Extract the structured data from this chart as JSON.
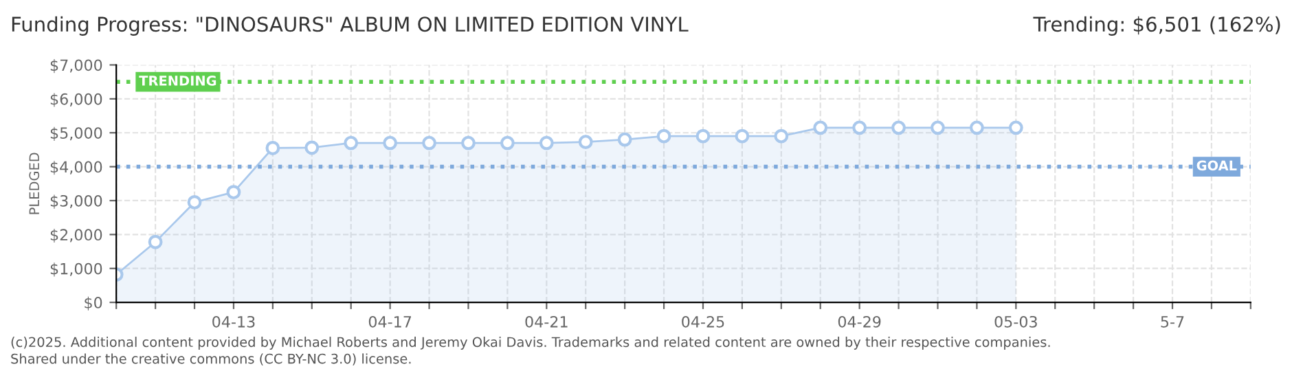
{
  "chart_data": {
    "type": "area",
    "title": "Funding Progress: \"DINOSAURS\" ALBUM ON LIMITED EDITION VINYL",
    "subtitle": "Trending: $6,501 (162%)",
    "ylabel": "PLEDGED",
    "categories": [
      null,
      null,
      null,
      "04-13",
      null,
      null,
      null,
      "04-17",
      null,
      null,
      null,
      "04-21",
      null,
      null,
      null,
      "04-25",
      null,
      null,
      null,
      "04-29",
      null,
      null,
      null,
      "05-03",
      null,
      null,
      null,
      "5-7",
      null,
      null
    ],
    "series": [
      {
        "color": "#a9c8ec",
        "values": [
          820,
          1780,
          2950,
          3250,
          4550,
          4560,
          4700,
          4700,
          4700,
          4700,
          4700,
          4700,
          4730,
          4800,
          4900,
          4900,
          4900,
          4900,
          5150,
          5150,
          5150,
          5150,
          5150,
          5150,
          null,
          null,
          null,
          null,
          null,
          null
        ]
      }
    ],
    "ylim": [
      0,
      7000
    ],
    "yticks": [
      {
        "value": 0,
        "label": "$0"
      },
      {
        "value": 1000,
        "label": "$1,000"
      },
      {
        "value": 2000,
        "label": "$2,000"
      },
      {
        "value": 3000,
        "label": "$3,000"
      },
      {
        "value": 4000,
        "label": "$4,000"
      },
      {
        "value": 5000,
        "label": "$5,000"
      },
      {
        "value": 6000,
        "label": "$6,000"
      },
      {
        "value": 7000,
        "label": "$7,000"
      }
    ],
    "ref_lines": [
      {
        "axis": "y",
        "value": 6501,
        "label": "TRENDING",
        "color": "#5fcf4f",
        "line_style": "dotted"
      },
      {
        "axis": "y",
        "value": 4000,
        "label": "GOAL",
        "color": "#7ea9dc",
        "line_style": "dotted"
      }
    ],
    "grid": true,
    "marker": "circle",
    "legend": false,
    "annotations": [
      "(c)2025. Additional content provided by Michael Roberts and Jeremy Okai Davis. Trademarks and related content are owned by their respective companies.",
      "Shared under the creative commons (CC BY-NC 3.0) license."
    ]
  }
}
